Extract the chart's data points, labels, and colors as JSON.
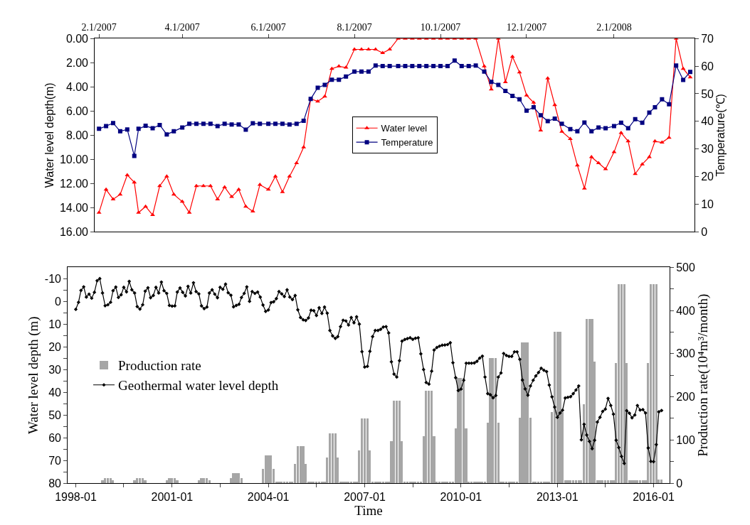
{
  "chart_data": [
    {
      "type": "line",
      "x": [
        "2007-02-01",
        "2007-02-06",
        "2007-02-11",
        "2007-02-16",
        "2007-02-21",
        "2007-02-26",
        "2007-03-01",
        "2007-03-06",
        "2007-03-11",
        "2007-03-16",
        "2007-03-21",
        "2007-03-26",
        "2007-04-01",
        "2007-04-06",
        "2007-04-11",
        "2007-04-16",
        "2007-04-21",
        "2007-04-26",
        "2007-05-01",
        "2007-05-06",
        "2007-05-11",
        "2007-05-16",
        "2007-05-21",
        "2007-05-26",
        "2007-06-01",
        "2007-06-06",
        "2007-06-11",
        "2007-06-16",
        "2007-06-21",
        "2007-06-26",
        "2007-07-01",
        "2007-07-06",
        "2007-07-11",
        "2007-07-16",
        "2007-07-21",
        "2007-07-26",
        "2007-08-01",
        "2007-08-06",
        "2007-08-11",
        "2007-08-16",
        "2007-08-21",
        "2007-08-26",
        "2007-09-01",
        "2007-09-06",
        "2007-09-11",
        "2007-09-16",
        "2007-09-21",
        "2007-09-26",
        "2007-10-01",
        "2007-10-06",
        "2007-10-11",
        "2007-10-16",
        "2007-10-21",
        "2007-10-26",
        "2007-11-01",
        "2007-11-06",
        "2007-11-11",
        "2007-11-16",
        "2007-11-21",
        "2007-11-26",
        "2007-12-01",
        "2007-12-06",
        "2007-12-11",
        "2007-12-16",
        "2007-12-21",
        "2007-12-26",
        "2008-01-01",
        "2008-01-06",
        "2008-01-11",
        "2008-01-16",
        "2008-01-21",
        "2008-01-26",
        "2008-02-01",
        "2008-02-06",
        "2008-02-11",
        "2008-02-16",
        "2008-02-21",
        "2008-02-26",
        "2008-03-01",
        "2008-03-06",
        "2008-03-11",
        "2008-03-16",
        "2008-03-21",
        "2008-03-26"
      ],
      "xlim": [
        "2007-01-29",
        "2008-03-29"
      ],
      "xticks": [
        {
          "value": "2007-02-01",
          "label": "2.1/2007"
        },
        {
          "value": "2007-04-01",
          "label": "4.1/2007"
        },
        {
          "value": "2007-06-01",
          "label": "6.1/2007"
        },
        {
          "value": "2007-08-01",
          "label": "8.1/2007"
        },
        {
          "value": "2007-10-01",
          "label": "10.1/2007"
        },
        {
          "value": "2007-12-01",
          "label": "12.1/2007"
        },
        {
          "value": "2008-02-01",
          "label": "2.1/2008"
        }
      ],
      "ylabel": "Water level depth(m)",
      "y2label": "Temperature(℃)",
      "ylim": [
        16,
        0
      ],
      "yticks": [
        {
          "value": 0,
          "label": "0.00"
        },
        {
          "value": 2,
          "label": "2.00"
        },
        {
          "value": 4,
          "label": "4.00"
        },
        {
          "value": 6,
          "label": "6.00"
        },
        {
          "value": 8,
          "label": "8.00"
        },
        {
          "value": 10,
          "label": "10.00"
        },
        {
          "value": 12,
          "label": "12.00"
        },
        {
          "value": 14,
          "label": "14.00"
        },
        {
          "value": 16,
          "label": "16.00"
        }
      ],
      "y2lim": [
        0,
        70
      ],
      "y2ticks": [
        0,
        10,
        20,
        30,
        40,
        50,
        60,
        70
      ],
      "legend": "center",
      "series": [
        {
          "name": "Water level",
          "color": "#ff0000",
          "marker": "triangle",
          "values": [
            14.4,
            12.5,
            13.3,
            12.9,
            11.3,
            11.9,
            14.4,
            13.9,
            14.6,
            12.2,
            11.4,
            12.9,
            13.5,
            14.4,
            12.2,
            12.2,
            12.2,
            13.3,
            12.3,
            13.1,
            12.5,
            13.9,
            14.3,
            12.1,
            12.5,
            11.4,
            12.7,
            11.4,
            10.3,
            9.0,
            5.0,
            5.2,
            4.8,
            2.5,
            2.3,
            2.4,
            0.9,
            0.9,
            0.9,
            0.9,
            1.2,
            0.9,
            0,
            0,
            0,
            0,
            0,
            0,
            0,
            0,
            0,
            0,
            0,
            0,
            2.3,
            4.2,
            0,
            3.6,
            1.5,
            2.8,
            4.7,
            5.3,
            7.6,
            3.3,
            5.5,
            7.7,
            8.3,
            10.5,
            12.4,
            9.8,
            10.3,
            10.8,
            9.4,
            7.8,
            8.5,
            11.2,
            10.4,
            9.8,
            8.5,
            8.6,
            8.2,
            0,
            2.5,
            3.2
          ]
        },
        {
          "name": "Temperature",
          "color": "#000080",
          "marker": "square",
          "axis": "y2",
          "values": [
            37.3,
            38.3,
            39.4,
            36.4,
            37.1,
            27.5,
            37.3,
            38.4,
            37.5,
            38.7,
            35.3,
            36.4,
            37.8,
            39.1,
            39.1,
            39.1,
            39.1,
            38.3,
            39.1,
            38.9,
            38.9,
            37.0,
            39.3,
            39.1,
            39.1,
            39.1,
            39.1,
            38.9,
            39.1,
            40.2,
            48.1,
            52.2,
            53.2,
            55.1,
            55.1,
            56.2,
            58.0,
            58.0,
            58.0,
            60.2,
            60,
            60,
            60,
            60,
            60,
            60,
            60,
            60,
            60,
            60,
            62.0,
            60,
            60,
            60.2,
            58.0,
            54.3,
            53.2,
            51.0,
            49.2,
            48.0,
            43.9,
            45.1,
            42.2,
            40.1,
            41.0,
            39.1,
            37.2,
            36.4,
            39.6,
            36.4,
            37.8,
            37.5,
            38.3,
            39.5,
            37.5,
            40.8,
            39.5,
            43.2,
            45.1,
            48.0,
            46.2,
            60.2,
            55.0,
            57.9
          ]
        }
      ]
    },
    {
      "type": "line",
      "x": [
        "1998-01",
        "1998-02",
        "1998-03",
        "1998-04",
        "1998-05",
        "1998-06",
        "1998-07",
        "1998-08",
        "1998-09",
        "1998-10",
        "1998-11",
        "1998-12",
        "1999-01",
        "1999-02",
        "1999-03",
        "1999-04",
        "1999-05",
        "1999-06",
        "1999-07",
        "1999-08",
        "1999-09",
        "1999-10",
        "1999-11",
        "1999-12",
        "2000-01",
        "2000-02",
        "2000-03",
        "2000-04",
        "2000-05",
        "2000-06",
        "2000-07",
        "2000-08",
        "2000-09",
        "2000-10",
        "2000-11",
        "2000-12",
        "2001-01",
        "2001-02",
        "2001-03",
        "2001-04",
        "2001-05",
        "2001-06",
        "2001-07",
        "2001-08",
        "2001-09",
        "2001-10",
        "2001-11",
        "2001-12",
        "2002-01",
        "2002-02",
        "2002-03",
        "2002-04",
        "2002-05",
        "2002-06",
        "2002-07",
        "2002-08",
        "2002-09",
        "2002-10",
        "2002-11",
        "2002-12",
        "2003-01",
        "2003-02",
        "2003-03",
        "2003-04",
        "2003-05",
        "2003-06",
        "2003-07",
        "2003-08",
        "2003-09",
        "2003-10",
        "2003-11",
        "2003-12",
        "2004-01",
        "2004-02",
        "2004-03",
        "2004-04",
        "2004-05",
        "2004-06",
        "2004-07",
        "2004-08",
        "2004-09",
        "2004-10",
        "2004-11",
        "2004-12",
        "2005-01",
        "2005-02",
        "2005-03",
        "2005-04",
        "2005-05",
        "2005-06",
        "2005-07",
        "2005-08",
        "2005-09",
        "2005-10",
        "2005-11",
        "2005-12",
        "2006-01",
        "2006-02",
        "2006-03",
        "2006-04",
        "2006-05",
        "2006-06",
        "2006-07",
        "2006-08",
        "2006-09",
        "2006-10",
        "2006-11",
        "2006-12",
        "2007-01",
        "2007-02",
        "2007-03",
        "2007-04",
        "2007-05",
        "2007-06",
        "2007-07",
        "2007-08",
        "2007-09",
        "2007-10",
        "2007-11",
        "2007-12",
        "2008-01",
        "2008-02",
        "2008-03",
        "2008-04",
        "2008-05",
        "2008-06",
        "2008-07",
        "2008-08",
        "2008-09",
        "2008-10",
        "2008-11",
        "2008-12",
        "2009-01",
        "2009-02",
        "2009-03",
        "2009-04",
        "2009-05",
        "2009-06",
        "2009-07",
        "2009-08",
        "2009-09",
        "2009-10",
        "2009-11",
        "2009-12",
        "2010-01",
        "2010-02",
        "2010-03",
        "2010-04",
        "2010-05",
        "2010-06",
        "2010-07",
        "2010-08",
        "2010-09",
        "2010-10",
        "2010-11",
        "2010-12",
        "2011-01",
        "2011-02",
        "2011-03",
        "2011-04",
        "2011-05",
        "2011-06",
        "2011-07",
        "2011-08",
        "2011-09",
        "2011-10",
        "2011-11",
        "2011-12",
        "2012-01",
        "2012-02",
        "2012-03",
        "2012-04",
        "2012-05",
        "2012-06",
        "2012-07",
        "2012-08",
        "2012-09",
        "2012-10",
        "2012-11",
        "2012-12",
        "2013-01",
        "2013-02",
        "2013-03",
        "2013-04",
        "2013-05",
        "2013-06",
        "2013-07",
        "2013-08",
        "2013-09",
        "2013-10",
        "2013-11",
        "2013-12",
        "2014-01",
        "2014-02",
        "2014-03",
        "2014-04",
        "2014-05",
        "2014-06",
        "2014-07",
        "2014-08",
        "2014-09",
        "2014-10",
        "2014-11",
        "2014-12",
        "2015-01",
        "2015-02",
        "2015-03",
        "2015-04",
        "2015-05",
        "2015-06",
        "2015-07",
        "2015-08",
        "2015-09",
        "2015-10",
        "2015-11",
        "2015-12",
        "2016-01",
        "2016-02",
        "2016-03",
        "2016-04"
      ],
      "xlim": [
        "1997-10",
        "2016-07"
      ],
      "xticks": [
        "1998-01",
        {
          "value": "1999-07",
          "label": null
        },
        "2001-01",
        {
          "value": "2002-07",
          "label": null
        },
        "2004-01",
        {
          "value": "2005-07",
          "label": null
        },
        "2007-01",
        {
          "value": "2008-07",
          "label": null
        },
        "2010-01",
        {
          "value": "2011-07",
          "label": null
        },
        "2013-01",
        {
          "value": "2014-07",
          "label": null
        },
        "2016-01"
      ],
      "xlabel": "Time",
      "ylabel": "Water level depth (m)",
      "y2label": "Production rate(10⁴m³/month)",
      "ylim": [
        80,
        -15
      ],
      "yticks": [
        -10,
        {
          "value": -5,
          "label": null
        },
        0,
        {
          "value": 5,
          "label": null
        },
        10,
        {
          "value": 15,
          "label": null
        },
        20,
        {
          "value": 25,
          "label": null
        },
        30,
        {
          "value": 35,
          "label": null
        },
        40,
        {
          "value": 45,
          "label": null
        },
        50,
        {
          "value": 55,
          "label": null
        },
        60,
        {
          "value": 65,
          "label": null
        },
        70,
        {
          "value": 75,
          "label": null
        },
        80
      ],
      "y2lim": [
        0,
        500
      ],
      "y2ticks": [
        0,
        {
          "value": 50,
          "label": null
        },
        100,
        {
          "value": 150,
          "label": null
        },
        200,
        {
          "value": 250,
          "label": null
        },
        300,
        {
          "value": 350,
          "label": null
        },
        400,
        {
          "value": 450,
          "label": null
        },
        500
      ],
      "legend": "left",
      "series": [
        {
          "name": "Production rate",
          "type": "bar",
          "axis": "y2",
          "color": "#a6a6a6",
          "values": [
            0,
            0,
            0,
            0,
            0,
            0,
            0,
            0,
            0,
            0,
            6,
            12,
            12,
            12,
            6,
            0,
            0,
            0,
            0,
            0,
            0,
            0,
            6,
            12,
            12,
            12,
            6,
            0,
            0,
            0,
            0,
            0,
            0,
            0,
            6,
            12,
            12,
            12,
            6,
            0,
            0,
            0,
            0,
            0,
            0,
            0,
            6,
            12,
            12,
            12,
            6,
            0,
            0,
            0,
            0,
            0,
            0,
            0,
            12,
            23,
            23,
            23,
            12,
            0,
            0,
            0,
            0,
            0,
            0,
            0,
            33,
            64,
            64,
            64,
            33,
            2,
            2,
            2,
            2,
            2,
            2,
            2,
            44,
            86,
            86,
            86,
            44,
            2,
            2,
            2,
            2,
            2,
            2,
            2,
            59,
            115,
            115,
            115,
            59,
            2,
            2,
            2,
            2,
            2,
            2,
            2,
            76,
            150,
            150,
            150,
            76,
            4,
            4,
            4,
            4,
            4,
            4,
            4,
            97,
            191,
            191,
            191,
            97,
            4,
            4,
            4,
            4,
            4,
            4,
            4,
            109,
            213,
            213,
            213,
            109,
            4,
            4,
            4,
            4,
            4,
            4,
            4,
            126,
            243,
            243,
            243,
            126,
            4,
            4,
            4,
            4,
            4,
            4,
            4,
            139,
            289,
            289,
            289,
            139,
            4,
            4,
            4,
            4,
            4,
            4,
            4,
            152,
            325,
            325,
            325,
            152,
            4,
            4,
            4,
            4,
            4,
            4,
            4,
            165,
            351,
            351,
            351,
            165,
            7,
            7,
            7,
            7,
            7,
            7,
            7,
            183,
            380,
            380,
            380,
            281,
            7,
            7,
            7,
            7,
            7,
            7,
            7,
            278,
            460,
            460,
            460,
            278,
            7,
            7,
            7,
            7,
            7,
            7,
            7,
            278,
            460,
            460,
            460,
            8,
            8
          ]
        },
        {
          "name": "Geothermal water level depth",
          "type": "line",
          "color": "#000000",
          "marker": "diamond",
          "values": [
            3.5,
            0.4,
            -4.8,
            -6.4,
            -1.9,
            -3.2,
            -1.4,
            -4.0,
            -9.1,
            -10.0,
            -3.7,
            1.9,
            1.5,
            0.4,
            -4.7,
            -6.3,
            -1.7,
            -2.9,
            -6.2,
            -4.2,
            -8.8,
            -5.1,
            -3.7,
            2.3,
            3.4,
            1.5,
            -4.5,
            -6.0,
            -1.6,
            -2.6,
            -6.2,
            -3.7,
            -8.5,
            -4.7,
            -3.5,
            1.8,
            2.1,
            2.0,
            -4.1,
            -5.9,
            -4.0,
            -2.4,
            -6.6,
            -3.7,
            -8.2,
            -4.3,
            -3.3,
            2.0,
            3.2,
            2.5,
            -3.7,
            -5.1,
            -3.2,
            -1.6,
            -6.2,
            -5.3,
            -7.6,
            -3.8,
            -2.7,
            2.4,
            1.8,
            1.3,
            -1.7,
            -3.5,
            -6.4,
            0,
            -4.3,
            -3.5,
            -4.1,
            -1.9,
            1.6,
            4.4,
            3.8,
            0.5,
            0.2,
            -1.2,
            -4.3,
            -3.3,
            -2.1,
            -5.1,
            -1.9,
            -0.8,
            -2.6,
            3.7,
            7.1,
            8.1,
            8.4,
            7.3,
            3.9,
            4.1,
            6.2,
            2.8,
            5.3,
            2.5,
            5.2,
            12.8,
            15.2,
            16.3,
            15.5,
            11.1,
            8.3,
            8.6,
            10.4,
            7.1,
            9.4,
            6.8,
            10.0,
            22.1,
            28.9,
            28.6,
            22.0,
            15.5,
            12.8,
            12.8,
            12.3,
            11.3,
            11.1,
            13.9,
            26.6,
            32.0,
            33.3,
            26.1,
            17.5,
            16.8,
            16.4,
            16.0,
            16.7,
            16.2,
            16.0,
            23.1,
            30.0,
            35.7,
            36.4,
            30.7,
            21.4,
            20.3,
            19.7,
            19.3,
            19.2,
            19.0,
            18.2,
            27.0,
            33.6,
            39.2,
            38.6,
            34.7,
            27.2,
            27.2,
            27.2,
            27.1,
            26.4,
            25.0,
            24.1,
            33.3,
            40.6,
            41.1,
            42.4,
            41.4,
            33.3,
            31.5,
            22.9,
            23.8,
            24.2,
            24.2,
            22.2,
            22.2,
            25.5,
            34.6,
            38.5,
            41.3,
            37.2,
            34.7,
            32.8,
            31.3,
            29.4,
            30.3,
            30.9,
            36.8,
            42.0,
            46.5,
            51.0,
            49.1,
            47.9,
            42.5,
            42.2,
            41.9,
            40.6,
            39.0,
            37.2,
            60.9,
            54.1,
            58.8,
            61.6,
            64.8,
            61.1,
            53.1,
            51.0,
            48.4,
            47.4,
            42.7,
            45.8,
            49.6,
            61.1,
            64.3,
            68.2,
            71.3,
            48.1,
            49.2,
            51.2,
            50.0,
            45.8,
            47.8,
            47.6,
            49.1,
            64.5,
            70.4,
            70.5,
            63.0,
            48.6,
            48.0
          ]
        }
      ]
    }
  ]
}
